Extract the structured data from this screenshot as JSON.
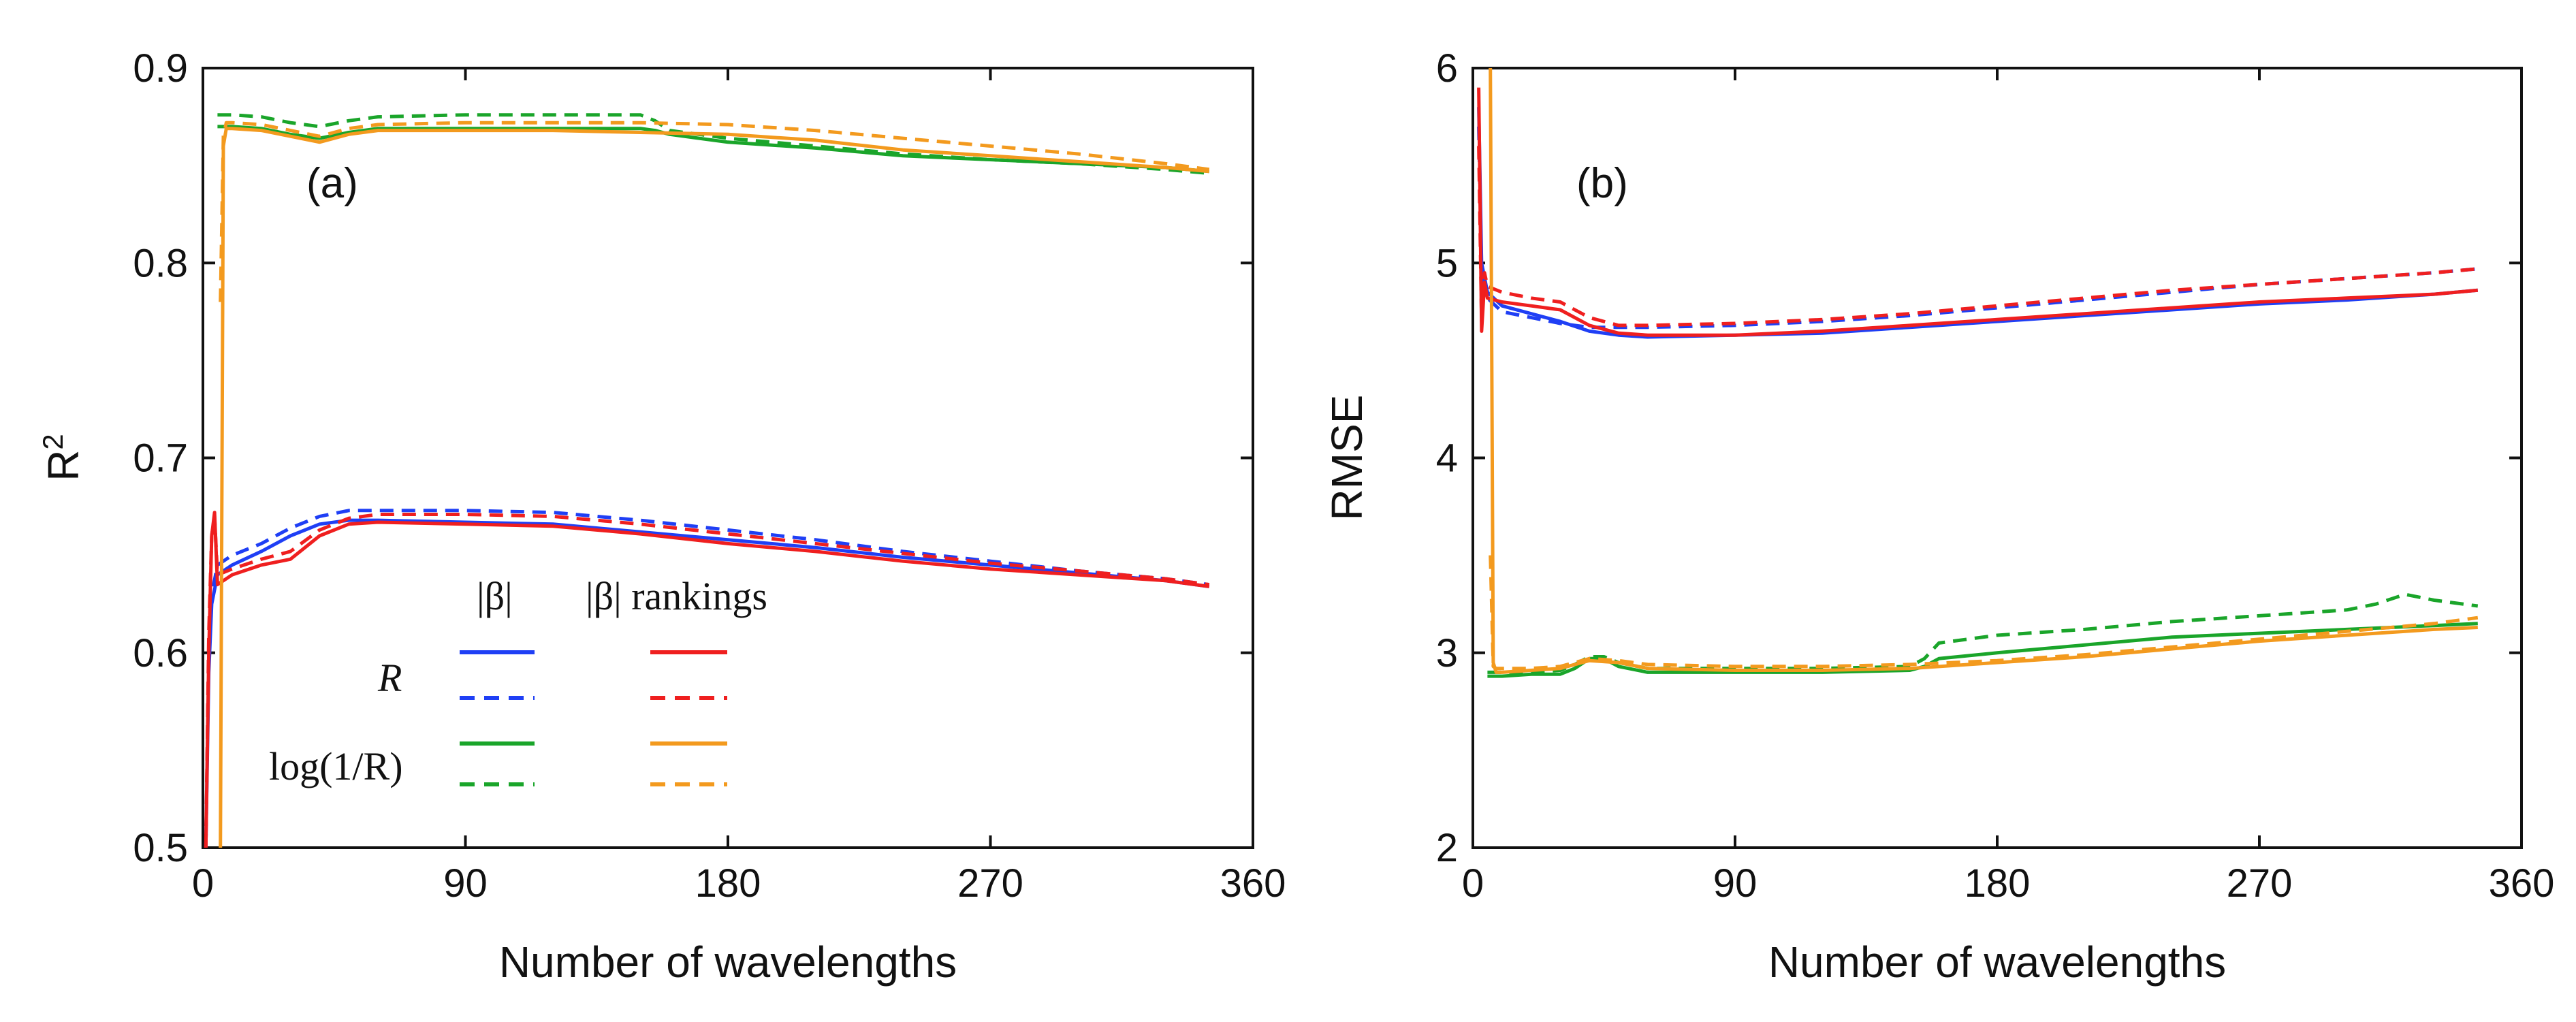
{
  "chart_data": [
    {
      "type": "line",
      "panel_label": "(a)",
      "xlabel": "Number of wavelengths",
      "ylabel_base": "R",
      "ylabel_sup": "2",
      "xlim": [
        0,
        360
      ],
      "ylim": [
        0.5,
        0.9
      ],
      "xticks": [
        "0",
        "90",
        "180",
        "270",
        "360"
      ],
      "yticks": [
        "0.5",
        "0.6",
        "0.7",
        "0.8",
        "0.9"
      ],
      "grid": false,
      "legend": {
        "col1_header": "|β|",
        "col2_header": "|β| rankings",
        "row1_label": "R",
        "row2_label": "log(1/R)"
      },
      "series": [
        {
          "legend_ref": "R, |β|, solid",
          "color": "#1f3ff5",
          "dash": "solid",
          "x": [
            1,
            2,
            3,
            5,
            10,
            20,
            30,
            40,
            50,
            60,
            90,
            120,
            150,
            180,
            210,
            240,
            270,
            300,
            330,
            345
          ],
          "y": [
            0.5,
            0.59,
            0.625,
            0.64,
            0.645,
            0.652,
            0.66,
            0.666,
            0.668,
            0.668,
            0.667,
            0.666,
            0.662,
            0.658,
            0.654,
            0.649,
            0.645,
            0.641,
            0.637,
            0.634
          ]
        },
        {
          "legend_ref": "R, |β|, dashed",
          "color": "#1f3ff5",
          "dash": "dashed",
          "x": [
            1,
            2,
            3,
            5,
            10,
            20,
            30,
            40,
            50,
            60,
            90,
            120,
            150,
            180,
            210,
            240,
            270,
            300,
            330,
            345
          ],
          "y": [
            0.5,
            0.6,
            0.63,
            0.645,
            0.65,
            0.656,
            0.664,
            0.67,
            0.673,
            0.673,
            0.673,
            0.672,
            0.668,
            0.663,
            0.658,
            0.652,
            0.647,
            0.642,
            0.638,
            0.635
          ]
        },
        {
          "legend_ref": "R, |β| rankings, solid",
          "color": "#ef1f1f",
          "dash": "solid",
          "x": [
            1,
            2,
            3,
            4,
            5,
            10,
            20,
            30,
            40,
            50,
            60,
            90,
            120,
            150,
            180,
            210,
            240,
            270,
            300,
            330,
            345
          ],
          "y": [
            0.5,
            0.6,
            0.66,
            0.672,
            0.635,
            0.64,
            0.645,
            0.648,
            0.66,
            0.666,
            0.667,
            0.666,
            0.665,
            0.661,
            0.656,
            0.652,
            0.647,
            0.643,
            0.64,
            0.637,
            0.634
          ]
        },
        {
          "legend_ref": "R, |β| rankings, dashed",
          "color": "#ef1f1f",
          "dash": "dashed",
          "x": [
            1,
            2,
            3,
            4,
            5,
            10,
            20,
            30,
            40,
            50,
            60,
            90,
            120,
            150,
            180,
            210,
            240,
            270,
            300,
            330,
            345
          ],
          "y": [
            0.5,
            0.61,
            0.66,
            0.67,
            0.64,
            0.643,
            0.648,
            0.652,
            0.663,
            0.669,
            0.671,
            0.671,
            0.67,
            0.666,
            0.661,
            0.656,
            0.651,
            0.646,
            0.642,
            0.638,
            0.635
          ]
        },
        {
          "legend_ref": "log(1/R), |β|, solid",
          "color": "#1aa52a",
          "dash": "solid",
          "x": [
            5,
            10,
            20,
            30,
            40,
            50,
            60,
            90,
            120,
            150,
            155,
            160,
            180,
            210,
            240,
            270,
            300,
            330,
            345
          ],
          "y": [
            0.87,
            0.87,
            0.869,
            0.866,
            0.864,
            0.867,
            0.869,
            0.869,
            0.869,
            0.869,
            0.868,
            0.866,
            0.862,
            0.859,
            0.855,
            0.853,
            0.851,
            0.849,
            0.847
          ]
        },
        {
          "legend_ref": "log(1/R), |β|, dashed",
          "color": "#1aa52a",
          "dash": "dashed",
          "x": [
            5,
            10,
            20,
            30,
            40,
            50,
            60,
            90,
            120,
            150,
            155,
            160,
            180,
            210,
            240,
            270,
            300,
            330,
            345
          ],
          "y": [
            0.876,
            0.876,
            0.875,
            0.872,
            0.87,
            0.873,
            0.875,
            0.876,
            0.876,
            0.876,
            0.873,
            0.868,
            0.864,
            0.86,
            0.856,
            0.853,
            0.851,
            0.848,
            0.846
          ]
        },
        {
          "legend_ref": "log(1/R), |β| rankings, solid",
          "color": "#f39a1e",
          "dash": "solid",
          "x": [
            6,
            7,
            8,
            10,
            20,
            30,
            40,
            50,
            60,
            90,
            120,
            150,
            180,
            210,
            240,
            270,
            300,
            330,
            345
          ],
          "y": [
            0.5,
            0.86,
            0.869,
            0.869,
            0.868,
            0.865,
            0.862,
            0.866,
            0.868,
            0.868,
            0.868,
            0.867,
            0.866,
            0.863,
            0.858,
            0.855,
            0.852,
            0.849,
            0.847
          ]
        },
        {
          "legend_ref": "log(1/R), |β| rankings, dashed",
          "color": "#f39a1e",
          "dash": "dashed",
          "x": [
            6,
            7,
            8,
            10,
            20,
            30,
            40,
            50,
            60,
            90,
            120,
            150,
            180,
            210,
            240,
            270,
            300,
            330,
            345
          ],
          "y": [
            0.78,
            0.865,
            0.872,
            0.872,
            0.871,
            0.868,
            0.865,
            0.869,
            0.871,
            0.872,
            0.872,
            0.872,
            0.871,
            0.868,
            0.864,
            0.86,
            0.856,
            0.851,
            0.848
          ]
        }
      ]
    },
    {
      "type": "line",
      "panel_label": "(b)",
      "xlabel": "Number of wavelengths",
      "ylabel": "RMSE",
      "xlim": [
        0,
        360
      ],
      "ylim": [
        2,
        6
      ],
      "xticks": [
        "0",
        "90",
        "180",
        "270",
        "360"
      ],
      "yticks": [
        "2",
        "3",
        "4",
        "5",
        "6"
      ],
      "grid": false,
      "series": [
        {
          "legend_ref": "R, |β|, solid",
          "color": "#1f3ff5",
          "dash": "solid",
          "x": [
            2,
            3,
            5,
            10,
            20,
            30,
            40,
            50,
            60,
            90,
            120,
            150,
            180,
            210,
            240,
            270,
            300,
            330,
            345
          ],
          "y": [
            5.8,
            5.0,
            4.85,
            4.78,
            4.74,
            4.7,
            4.65,
            4.63,
            4.62,
            4.63,
            4.64,
            4.67,
            4.7,
            4.73,
            4.76,
            4.79,
            4.81,
            4.84,
            4.86
          ]
        },
        {
          "legend_ref": "R, |β|, dashed",
          "color": "#1f3ff5",
          "dash": "dashed",
          "x": [
            2,
            3,
            5,
            10,
            20,
            30,
            40,
            50,
            60,
            90,
            120,
            150,
            180,
            210,
            240,
            270,
            300,
            330,
            345
          ],
          "y": [
            5.7,
            4.95,
            4.82,
            4.75,
            4.72,
            4.69,
            4.67,
            4.67,
            4.67,
            4.68,
            4.7,
            4.73,
            4.77,
            4.81,
            4.85,
            4.89,
            4.92,
            4.95,
            4.97
          ]
        },
        {
          "legend_ref": "R, |β| rankings, solid",
          "color": "#ef1f1f",
          "dash": "solid",
          "x": [
            2,
            3,
            4,
            5,
            10,
            20,
            30,
            40,
            50,
            60,
            90,
            120,
            150,
            180,
            210,
            240,
            270,
            300,
            330,
            345
          ],
          "y": [
            5.9,
            4.65,
            4.9,
            4.82,
            4.8,
            4.78,
            4.76,
            4.68,
            4.64,
            4.63,
            4.63,
            4.65,
            4.68,
            4.71,
            4.74,
            4.77,
            4.8,
            4.82,
            4.84,
            4.86
          ]
        },
        {
          "legend_ref": "R, |β| rankings, dashed",
          "color": "#ef1f1f",
          "dash": "dashed",
          "x": [
            2,
            3,
            4,
            5,
            10,
            20,
            30,
            40,
            50,
            60,
            90,
            120,
            150,
            180,
            210,
            240,
            270,
            300,
            330,
            345
          ],
          "y": [
            5.6,
            4.7,
            4.95,
            4.88,
            4.85,
            4.82,
            4.8,
            4.72,
            4.68,
            4.68,
            4.69,
            4.71,
            4.74,
            4.78,
            4.82,
            4.86,
            4.89,
            4.92,
            4.95,
            4.97
          ]
        },
        {
          "legend_ref": "log(1/R), |β|, solid",
          "color": "#1aa52a",
          "dash": "solid",
          "x": [
            5,
            10,
            20,
            30,
            35,
            40,
            45,
            50,
            60,
            90,
            120,
            150,
            155,
            160,
            180,
            210,
            240,
            270,
            300,
            330,
            345
          ],
          "y": [
            2.88,
            2.88,
            2.89,
            2.89,
            2.92,
            2.97,
            2.97,
            2.93,
            2.9,
            2.9,
            2.9,
            2.91,
            2.93,
            2.97,
            3.0,
            3.04,
            3.08,
            3.1,
            3.12,
            3.14,
            3.15
          ]
        },
        {
          "legend_ref": "log(1/R), |β|, dashed",
          "color": "#1aa52a",
          "dash": "dashed",
          "x": [
            5,
            10,
            20,
            30,
            35,
            40,
            45,
            50,
            60,
            90,
            120,
            150,
            155,
            160,
            180,
            210,
            240,
            270,
            300,
            310,
            320,
            330,
            345
          ],
          "y": [
            2.9,
            2.9,
            2.9,
            2.91,
            2.94,
            2.98,
            2.98,
            2.95,
            2.92,
            2.92,
            2.92,
            2.93,
            2.97,
            3.05,
            3.09,
            3.12,
            3.16,
            3.19,
            3.22,
            3.25,
            3.3,
            3.27,
            3.24
          ]
        },
        {
          "legend_ref": "log(1/R), |β| rankings, solid",
          "color": "#f39a1e",
          "dash": "solid",
          "x": [
            6,
            7,
            8,
            10,
            20,
            30,
            40,
            50,
            60,
            90,
            120,
            150,
            180,
            210,
            240,
            270,
            300,
            330,
            345
          ],
          "y": [
            6.0,
            2.95,
            2.9,
            2.9,
            2.91,
            2.92,
            2.96,
            2.95,
            2.92,
            2.91,
            2.91,
            2.92,
            2.95,
            2.98,
            3.02,
            3.06,
            3.09,
            3.12,
            3.13
          ]
        },
        {
          "legend_ref": "log(1/R), |β| rankings, dashed",
          "color": "#f39a1e",
          "dash": "dashed",
          "x": [
            6,
            7,
            8,
            10,
            20,
            30,
            40,
            50,
            60,
            90,
            120,
            150,
            180,
            210,
            240,
            270,
            300,
            330,
            345
          ],
          "y": [
            3.5,
            2.93,
            2.92,
            2.92,
            2.92,
            2.93,
            2.97,
            2.96,
            2.94,
            2.93,
            2.93,
            2.94,
            2.96,
            2.99,
            3.03,
            3.07,
            3.11,
            3.15,
            3.18
          ]
        }
      ]
    }
  ]
}
